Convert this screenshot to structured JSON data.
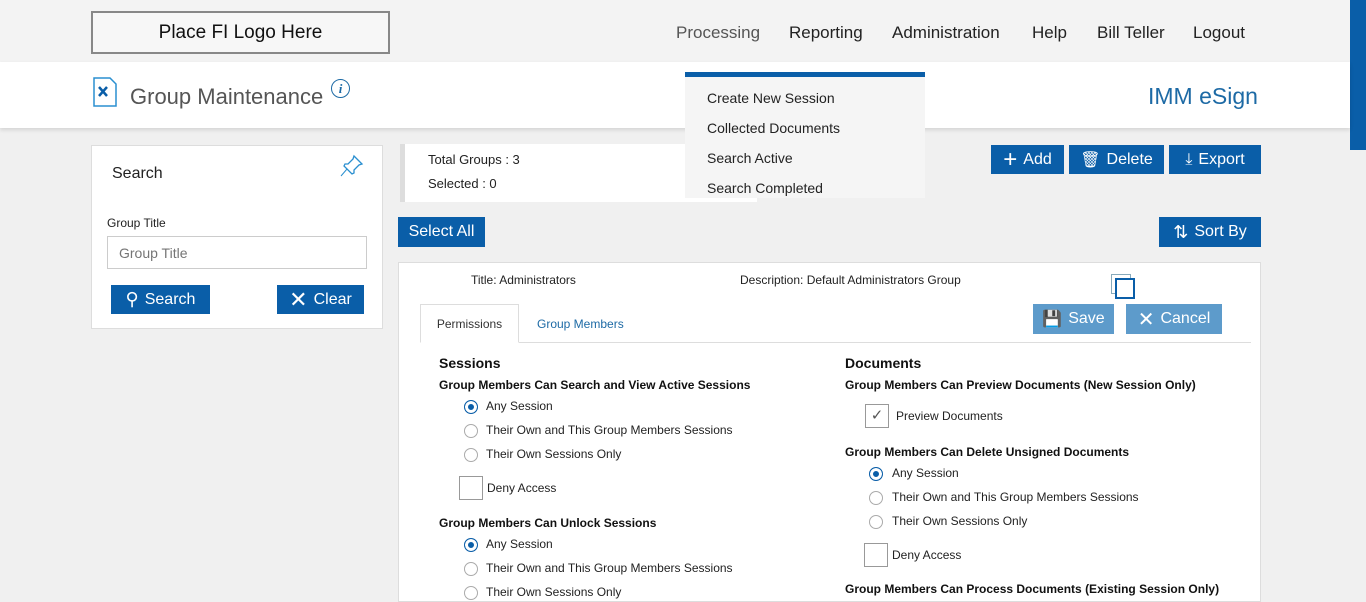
{
  "logo": "Place FI Logo Here",
  "nav": [
    "Processing",
    "Reporting",
    "Administration",
    "Help",
    "Bill Teller",
    "Logout"
  ],
  "page_title": "Group Maintenance",
  "brand": "IMM eSign",
  "dropdown": [
    "Create New Session",
    "Collected Documents",
    "Search Active",
    "Search Completed"
  ],
  "search": {
    "title": "Search",
    "field_label": "Group Title",
    "placeholder": "Group Title",
    "search_btn": "Search",
    "clear_btn": "Clear"
  },
  "stats": {
    "total": "Total Groups : 3",
    "selected": "Selected : 0"
  },
  "toolbar": {
    "add": "Add",
    "delete": "Delete",
    "export": "Export",
    "select_all": "Select All",
    "sort_by": "Sort By"
  },
  "group": {
    "title": "Title:  Administrators",
    "description": "Description: Default Administrators Group",
    "save": "Save",
    "cancel": "Cancel",
    "tabs": [
      "Permissions",
      "Group Members"
    ],
    "sessions": {
      "heading": "Sessions",
      "q1": "Group Members Can Search and View Active Sessions",
      "q2": "Group Members Can Unlock Sessions",
      "options": [
        "Any Session",
        "Their Own and This Group Members Sessions",
        "Their Own Sessions Only"
      ],
      "deny": "Deny Access"
    },
    "documents": {
      "heading": "Documents",
      "q1": "Group Members Can Preview Documents (New Session Only)",
      "preview": "Preview Documents",
      "q2": "Group Members Can Delete Unsigned Documents",
      "q3": "Group Members Can Process Documents (Existing Session Only)"
    }
  }
}
